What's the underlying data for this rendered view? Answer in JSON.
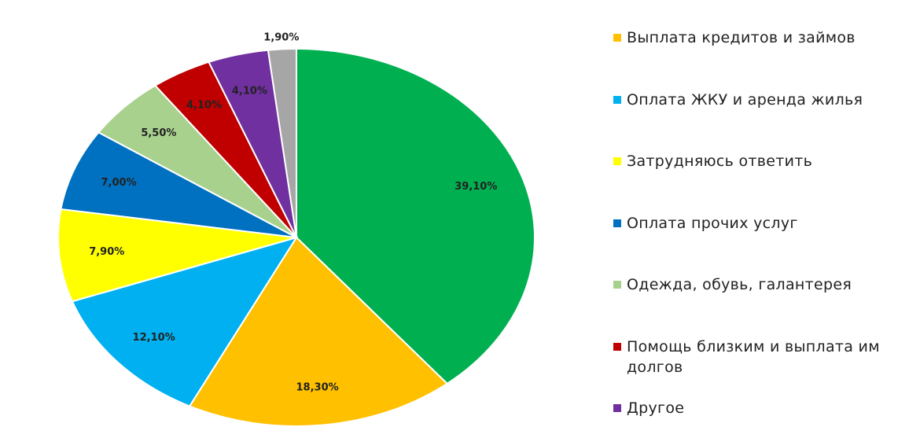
{
  "chart_data": {
    "type": "pie",
    "categories": [
      null,
      "Выплата кредитов и займов",
      "Оплата ЖКУ и аренда жилья",
      "Затрудняюсь ответить",
      "Оплата прочих услуг",
      "Одежда, обувь, галантерея",
      "Помощь близким и выплата им долгов",
      "Другое",
      null
    ],
    "values": [
      39.1,
      18.3,
      12.1,
      7.9,
      7.0,
      5.5,
      4.1,
      4.1,
      1.9
    ],
    "value_labels": [
      "39,10%",
      "18,30%",
      "12,10%",
      "7,90%",
      "7,00%",
      "5,50%",
      "4,10%",
      "4,10%",
      "1,90%"
    ],
    "colors": [
      "#00b050",
      "#ffc000",
      "#00b0f0",
      "#ffff00",
      "#0070c0",
      "#a9d18e",
      "#c00000",
      "#7030a0",
      "#a6a6a6"
    ]
  }
}
